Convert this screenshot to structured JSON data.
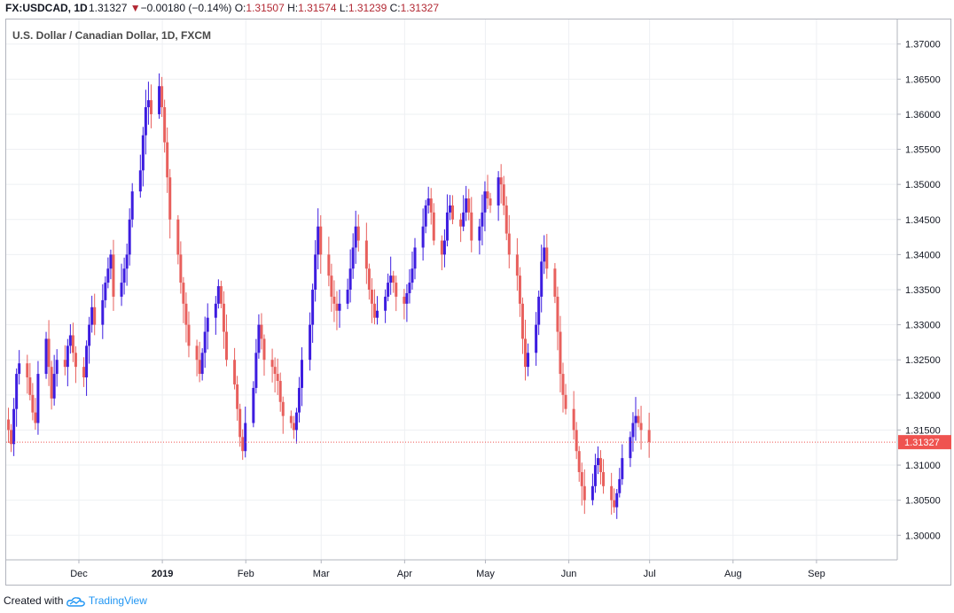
{
  "header": {
    "symbol": "FX:USDCAD, 1D",
    "last": "1.31327",
    "change": "−0.00180 (−0.14%)",
    "open_label": "O:",
    "open": "1.31507",
    "high_label": "H:",
    "high": "1.31574",
    "low_label": "L:",
    "low": "1.31239",
    "close_label": "C:",
    "close": "1.31327",
    "down_color": "#b22833"
  },
  "footer": {
    "created_with": "Created with",
    "brand": "TradingView",
    "brand_icon": "tradingview-cloud-icon"
  },
  "chart_data": {
    "type": "candlestick",
    "title": "U.S. Dollar / Canadian Dollar, 1D, FXCM",
    "xlabel": "",
    "ylabel": "",
    "ylim": [
      1.2965,
      1.3735
    ],
    "xlim": [
      "2018-11-04",
      "2019-10-01"
    ],
    "y_ticks": [
      "1.30000",
      "1.30500",
      "1.31000",
      "1.31500",
      "1.32000",
      "1.32500",
      "1.33000",
      "1.33500",
      "1.34000",
      "1.34500",
      "1.35000",
      "1.35500",
      "1.36000",
      "1.36500",
      "1.37000"
    ],
    "x_ticks": [
      {
        "label": "Dec",
        "date": "2018-12-01"
      },
      {
        "label": "2019",
        "date": "2019-01-01"
      },
      {
        "label": "Feb",
        "date": "2019-02-01"
      },
      {
        "label": "Mar",
        "date": "2019-03-01"
      },
      {
        "label": "Apr",
        "date": "2019-04-01"
      },
      {
        "label": "May",
        "date": "2019-05-01"
      },
      {
        "label": "Jun",
        "date": "2019-06-01"
      },
      {
        "label": "Jul",
        "date": "2019-07-01"
      },
      {
        "label": "Aug",
        "date": "2019-08-01"
      },
      {
        "label": "Sep",
        "date": "2019-09-01"
      }
    ],
    "grid": true,
    "up_color": "#3d1de0",
    "down_color": "#e8605d",
    "last_price": 1.31327,
    "last_price_label": "1.31327",
    "last_price_color": "#ef5350",
    "path_start_date": "2018-11-05",
    "path": [
      1.315,
      1.313,
      1.318,
      1.323,
      1.3245,
      1.3225,
      1.32,
      1.3175,
      1.316,
      1.323,
      1.328,
      1.324,
      1.3195,
      1.323,
      1.325,
      1.324,
      1.327,
      1.3285,
      1.326,
      1.324,
      1.3225,
      1.327,
      1.33,
      1.3325,
      1.33,
      1.3335,
      1.336,
      1.338,
      1.34,
      1.334,
      1.336,
      1.338,
      1.34,
      1.345,
      1.349,
      1.352,
      1.357,
      1.361,
      1.362,
      1.36,
      1.364,
      1.361,
      1.356,
      1.351,
      1.345,
      1.34,
      1.336,
      1.333,
      1.33,
      1.327,
      1.325,
      1.323,
      1.326,
      1.329,
      1.331,
      1.333,
      1.3355,
      1.333,
      1.329,
      1.325,
      1.3215,
      1.318,
      1.314,
      1.312,
      1.316,
      1.321,
      1.326,
      1.33,
      1.328,
      1.325,
      1.324,
      1.323,
      1.322,
      1.319,
      1.317,
      1.316,
      1.315,
      1.3175,
      1.321,
      1.325,
      1.33,
      1.335,
      1.34,
      1.344,
      1.34,
      1.337,
      1.334,
      1.333,
      1.332,
      1.333,
      1.335,
      1.338,
      1.341,
      1.344,
      1.342,
      1.338,
      1.335,
      1.333,
      1.331,
      1.332,
      1.334,
      1.336,
      1.337,
      1.336,
      1.334,
      1.333,
      1.3345,
      1.336,
      1.338,
      1.341,
      1.344,
      1.347,
      1.348,
      1.346,
      1.342,
      1.34,
      1.342,
      1.346,
      1.347,
      1.345,
      1.344,
      1.346,
      1.348,
      1.346,
      1.342,
      1.344,
      1.346,
      1.349,
      1.348,
      1.347,
      1.351,
      1.35,
      1.347,
      1.343,
      1.34,
      1.337,
      1.333,
      1.328,
      1.324,
      1.326,
      1.33,
      1.334,
      1.339,
      1.341,
      1.338,
      1.334,
      1.329,
      1.323,
      1.32,
      1.318,
      1.315,
      1.312,
      1.309,
      1.307,
      1.305,
      1.307,
      1.31,
      1.311,
      1.309,
      1.307,
      1.305,
      1.304,
      1.306,
      1.308,
      1.311,
      1.314,
      1.316,
      1.317,
      1.316,
      1.315,
      1.3133
    ]
  }
}
